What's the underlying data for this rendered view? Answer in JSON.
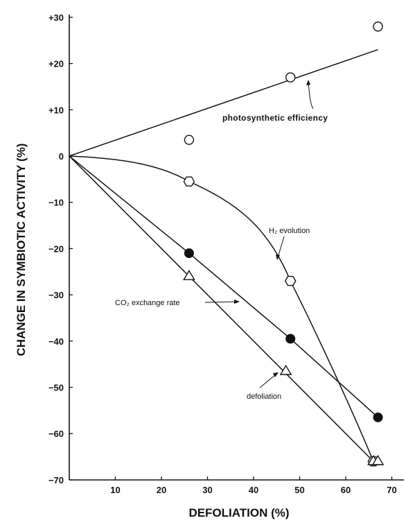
{
  "chart_data": {
    "type": "line",
    "title": "",
    "xlabel": "DEFOLIATION  (%)",
    "ylabel": "CHANGE IN SYMBIOTIC ACTIVITY (%)",
    "xlim": [
      0,
      70
    ],
    "ylim": [
      -70,
      30
    ],
    "x_ticks": [
      10,
      20,
      30,
      40,
      50,
      60,
      70
    ],
    "x_tick_labels": [
      "10",
      "20",
      "30",
      "40",
      "50",
      "60",
      "70"
    ],
    "y_ticks": [
      30,
      20,
      10,
      0,
      -10,
      -20,
      -30,
      -40,
      -50,
      -60,
      -70
    ],
    "y_tick_labels": [
      "+30",
      "+20",
      "+10",
      "0",
      "−10",
      "−20",
      "−30",
      "−40",
      "−50",
      "−60",
      "−70"
    ],
    "grid": false,
    "series": [
      {
        "name": "photosynthetic efficiency",
        "marker": "open-circle",
        "x": [
          26,
          48,
          67
        ],
        "y": [
          3.5,
          17,
          28
        ],
        "fit": "linear",
        "fit_x": [
          0,
          67
        ],
        "fit_y": [
          0,
          23
        ]
      },
      {
        "name": "H2 evolution",
        "marker": "open-hexagon",
        "x": [
          0,
          26,
          48,
          66
        ],
        "y": [
          0,
          -5.5,
          -27,
          -66
        ],
        "fit": "curve"
      },
      {
        "name": "CO2 exchange rate",
        "marker": "filled-circle",
        "x": [
          0,
          26,
          48,
          67
        ],
        "y": [
          0,
          -21,
          -39.5,
          -56.5
        ],
        "fit": "segments"
      },
      {
        "name": "defoliation",
        "marker": "open-triangle",
        "x": [
          0,
          26,
          47,
          66,
          67
        ],
        "y": [
          0,
          -26,
          -46.5,
          -66,
          -66
        ],
        "fit": "linear",
        "fit_x": [
          0,
          66
        ],
        "fit_y": [
          0,
          -66
        ]
      }
    ],
    "annotations": [
      {
        "text": "photosynthetic efficiency"
      },
      {
        "text": "H₂ evolution"
      },
      {
        "text": "CO₂ exchange rate"
      },
      {
        "text": "defoliation"
      }
    ]
  }
}
